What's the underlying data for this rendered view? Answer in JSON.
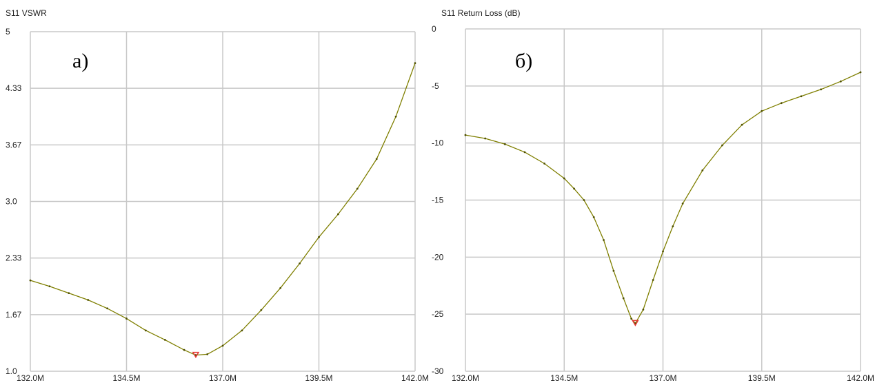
{
  "charts": [
    {
      "panel_label": "а)",
      "chart_data": {
        "type": "line",
        "title": "S11 VSWR",
        "xlabel": "",
        "ylabel": "",
        "x_ticks": [
          "132.0M",
          "134.5M",
          "137.0M",
          "139.5M",
          "142.0M"
        ],
        "y_ticks": [
          "5",
          "4.33",
          "3.67",
          "3.0",
          "2.33",
          "1.67",
          "1.0"
        ],
        "xlim": [
          132.0,
          142.0
        ],
        "ylim": [
          1.0,
          5.0
        ],
        "grid": true,
        "series": [
          {
            "x": [
              132.0,
              132.5,
              133.0,
              133.5,
              134.0,
              134.5,
              135.0,
              135.5,
              136.0,
              136.3,
              136.6,
              137.0,
              137.5,
              138.0,
              138.5,
              139.0,
              139.5,
              140.0,
              140.5,
              141.0,
              141.5,
              142.0
            ],
            "y": [
              2.07,
              2.0,
              1.92,
              1.84,
              1.74,
              1.62,
              1.48,
              1.37,
              1.25,
              1.19,
              1.2,
              1.3,
              1.48,
              1.72,
              1.98,
              2.27,
              2.58,
              2.85,
              3.15,
              3.5,
              4.0,
              4.63
            ]
          }
        ],
        "marker": {
          "x": 136.3,
          "y": 1.19
        },
        "line_color": "#7f7f00",
        "marker_color": "#e53935",
        "grid_color": "#c8c8c8"
      }
    },
    {
      "panel_label": "б)",
      "chart_data": {
        "type": "line",
        "title": "S11 Return Loss (dB)",
        "xlabel": "",
        "ylabel": "",
        "x_ticks": [
          "132.0M",
          "134.5M",
          "137.0M",
          "139.5M",
          "142.0M"
        ],
        "y_ticks": [
          "0",
          "-5",
          "-10",
          "-15",
          "-20",
          "-25",
          "-30"
        ],
        "xlim": [
          132.0,
          142.0
        ],
        "ylim": [
          -30,
          0
        ],
        "grid": true,
        "series": [
          {
            "x": [
              132.0,
              132.5,
              133.0,
              133.5,
              134.0,
              134.5,
              134.75,
              135.0,
              135.25,
              135.5,
              135.75,
              136.0,
              136.2,
              136.3,
              136.5,
              136.75,
              137.0,
              137.25,
              137.5,
              138.0,
              138.5,
              139.0,
              139.5,
              140.0,
              140.5,
              141.0,
              141.5,
              142.0
            ],
            "y": [
              -9.3,
              -9.6,
              -10.1,
              -10.8,
              -11.8,
              -13.1,
              -14.0,
              -15.0,
              -16.5,
              -18.5,
              -21.2,
              -23.6,
              -25.4,
              -25.8,
              -24.6,
              -22.0,
              -19.5,
              -17.3,
              -15.3,
              -12.4,
              -10.2,
              -8.4,
              -7.2,
              -6.5,
              -5.9,
              -5.3,
              -4.6,
              -3.8
            ]
          }
        ],
        "marker": {
          "x": 136.3,
          "y": -25.8
        },
        "line_color": "#7f7f00",
        "marker_color": "#e53935",
        "grid_color": "#c8c8c8"
      }
    }
  ]
}
